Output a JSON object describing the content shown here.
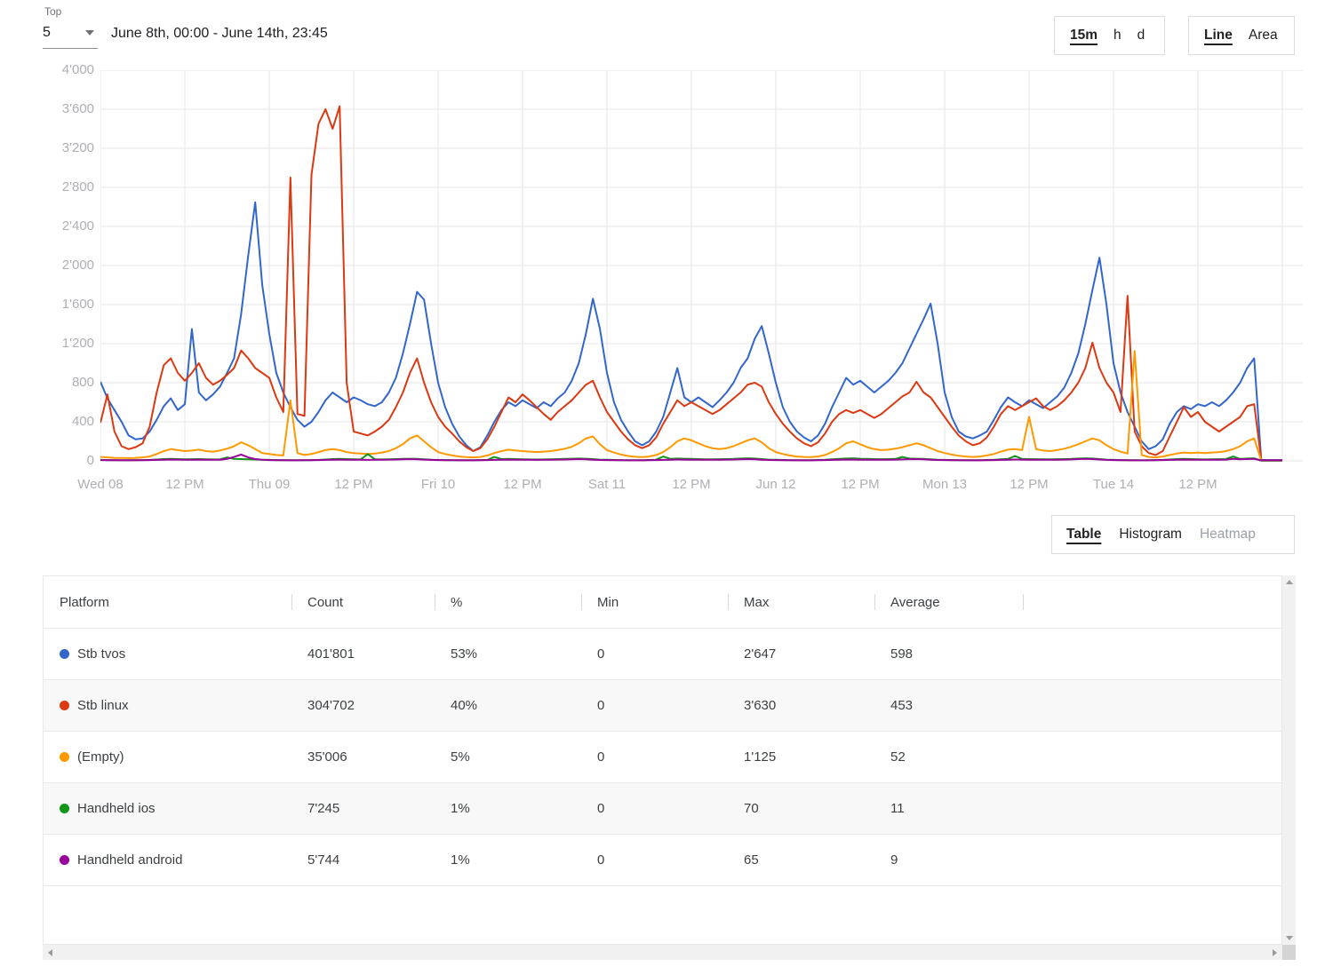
{
  "header": {
    "top_label": "Top",
    "top_value": "5",
    "date_range": "June 8th, 00:00 - June 14th, 23:45",
    "interval_options": [
      {
        "label": "15m",
        "active": true
      },
      {
        "label": "h",
        "active": false
      },
      {
        "label": "d",
        "active": false
      }
    ],
    "chart_type_options": [
      {
        "label": "Line",
        "active": true
      },
      {
        "label": "Area",
        "active": false
      }
    ]
  },
  "view_tabs": [
    {
      "label": "Table",
      "active": true
    },
    {
      "label": "Histogram",
      "active": false
    },
    {
      "label": "Heatmap",
      "active": false,
      "disabled": true
    }
  ],
  "chart_data": {
    "type": "line",
    "x_unit": "hours since June 8th 00:00, 15m granularity shown, downsampled to 1h",
    "ylim": [
      0,
      4000
    ],
    "grid": true,
    "y_tick_values": [
      0,
      400,
      800,
      1200,
      1600,
      2000,
      2400,
      2800,
      3200,
      3600,
      4000
    ],
    "y_tick_labels": [
      "0",
      "400",
      "800",
      "1'200",
      "1'600",
      "2'000",
      "2'400",
      "2'800",
      "3'200",
      "3'600",
      "4'000"
    ],
    "x_tick_hours": [
      0,
      12,
      24,
      36,
      48,
      60,
      72,
      84,
      96,
      108,
      120,
      132,
      144,
      156
    ],
    "x_tick_labels": [
      "Wed 08",
      "12 PM",
      "Thu 09",
      "12 PM",
      "Fri 10",
      "12 PM",
      "Sat 11",
      "12 PM",
      "Jun 12",
      "12 PM",
      "Mon 13",
      "12 PM",
      "Tue 14",
      "12 PM"
    ],
    "grid_hours": [
      0,
      12,
      24,
      36,
      48,
      60,
      72,
      84,
      96,
      108,
      120,
      132,
      144,
      156,
      168
    ],
    "series": [
      {
        "name": "Stb tvos",
        "color": "#3366cc",
        "values": [
          810,
          640,
          520,
          400,
          260,
          220,
          230,
          300,
          420,
          560,
          640,
          520,
          580,
          1350,
          700,
          620,
          680,
          760,
          900,
          1050,
          1500,
          2100,
          2647,
          1800,
          1300,
          900,
          700,
          550,
          420,
          350,
          400,
          500,
          620,
          700,
          650,
          600,
          650,
          620,
          580,
          560,
          600,
          700,
          850,
          1100,
          1400,
          1730,
          1650,
          1200,
          800,
          550,
          380,
          250,
          160,
          100,
          140,
          260,
          400,
          520,
          600,
          560,
          620,
          580,
          540,
          600,
          560,
          640,
          700,
          820,
          1000,
          1300,
          1660,
          1350,
          900,
          600,
          420,
          300,
          200,
          160,
          200,
          300,
          450,
          700,
          950,
          650,
          600,
          650,
          600,
          550,
          620,
          700,
          800,
          950,
          1050,
          1250,
          1380,
          1100,
          800,
          550,
          400,
          300,
          240,
          200,
          260,
          380,
          550,
          700,
          850,
          780,
          820,
          760,
          700,
          760,
          820,
          900,
          1000,
          1150,
          1300,
          1450,
          1610,
          1200,
          700,
          450,
          300,
          250,
          230,
          260,
          300,
          420,
          550,
          650,
          600,
          560,
          620,
          580,
          540,
          600,
          660,
          750,
          900,
          1100,
          1400,
          1750,
          2080,
          1600,
          1000,
          700,
          500,
          350,
          200,
          120,
          150,
          220,
          380,
          500,
          560,
          530,
          580,
          560,
          600,
          560,
          620,
          700,
          800,
          950,
          1050,
          10,
          8,
          8,
          8
        ]
      },
      {
        "name": "Stb linux",
        "color": "#dc3912",
        "values": [
          390,
          680,
          300,
          150,
          120,
          140,
          180,
          350,
          700,
          980,
          1050,
          900,
          820,
          900,
          1000,
          850,
          780,
          820,
          880,
          950,
          1130,
          1050,
          950,
          900,
          850,
          650,
          500,
          2900,
          480,
          460,
          2930,
          3450,
          3600,
          3400,
          3630,
          800,
          300,
          280,
          260,
          300,
          350,
          420,
          550,
          700,
          900,
          1050,
          800,
          600,
          450,
          350,
          280,
          200,
          140,
          100,
          130,
          220,
          350,
          500,
          650,
          600,
          680,
          620,
          550,
          480,
          420,
          500,
          560,
          620,
          700,
          780,
          820,
          650,
          500,
          400,
          300,
          220,
          160,
          130,
          160,
          240,
          380,
          500,
          620,
          560,
          600,
          560,
          520,
          480,
          520,
          580,
          640,
          700,
          780,
          800,
          760,
          600,
          480,
          380,
          300,
          230,
          180,
          150,
          190,
          280,
          400,
          480,
          520,
          490,
          520,
          480,
          440,
          480,
          540,
          600,
          660,
          700,
          810,
          700,
          650,
          550,
          450,
          350,
          260,
          200,
          160,
          180,
          240,
          350,
          480,
          560,
          520,
          560,
          600,
          640,
          560,
          520,
          560,
          620,
          700,
          800,
          950,
          1210,
          950,
          800,
          700,
          500,
          1690,
          300,
          150,
          80,
          60,
          100,
          250,
          400,
          550,
          450,
          500,
          400,
          350,
          300,
          350,
          400,
          450,
          560,
          580,
          5,
          5,
          5,
          5
        ]
      },
      {
        "name": "(Empty)",
        "color": "#ff9900",
        "values": [
          40,
          35,
          30,
          30,
          28,
          30,
          35,
          45,
          70,
          100,
          120,
          110,
          100,
          105,
          115,
          100,
          95,
          105,
          125,
          150,
          190,
          160,
          120,
          80,
          70,
          60,
          55,
          620,
          80,
          60,
          70,
          90,
          110,
          120,
          110,
          90,
          80,
          75,
          70,
          75,
          85,
          100,
          130,
          170,
          230,
          260,
          200,
          140,
          90,
          70,
          55,
          45,
          38,
          35,
          40,
          55,
          80,
          100,
          115,
          105,
          100,
          95,
          90,
          95,
          100,
          110,
          125,
          145,
          180,
          230,
          250,
          170,
          110,
          85,
          65,
          50,
          42,
          38,
          45,
          60,
          90,
          140,
          200,
          230,
          210,
          180,
          150,
          130,
          120,
          130,
          150,
          180,
          210,
          230,
          190,
          130,
          90,
          70,
          55,
          45,
          40,
          38,
          45,
          60,
          90,
          130,
          180,
          200,
          170,
          140,
          120,
          110,
          115,
          125,
          140,
          160,
          180,
          160,
          130,
          100,
          80,
          65,
          52,
          45,
          40,
          45,
          55,
          70,
          95,
          115,
          120,
          110,
          450,
          120,
          105,
          100,
          110,
          125,
          145,
          170,
          200,
          230,
          210,
          160,
          120,
          95,
          75,
          1125,
          60,
          40,
          35,
          45,
          60,
          75,
          85,
          80,
          85,
          80,
          85,
          90,
          100,
          120,
          150,
          200,
          230,
          3,
          3,
          3,
          3
        ]
      },
      {
        "name": "Handheld ios",
        "color": "#109618",
        "values": [
          10,
          8,
          7,
          6,
          6,
          7,
          8,
          10,
          14,
          18,
          20,
          18,
          16,
          17,
          18,
          16,
          15,
          16,
          35,
          20,
          18,
          16,
          14,
          12,
          10,
          8,
          7,
          7,
          6,
          7,
          8,
          10,
          14,
          18,
          20,
          18,
          16,
          15,
          70,
          16,
          15,
          16,
          18,
          20,
          22,
          20,
          16,
          12,
          10,
          8,
          7,
          6,
          6,
          7,
          8,
          10,
          40,
          18,
          20,
          18,
          16,
          15,
          14,
          15,
          16,
          18,
          20,
          22,
          24,
          22,
          18,
          12,
          12,
          9,
          7,
          6,
          6,
          7,
          9,
          12,
          45,
          20,
          24,
          22,
          20,
          18,
          16,
          16,
          17,
          18,
          20,
          24,
          26,
          24,
          18,
          13,
          11,
          9,
          7,
          6,
          6,
          7,
          9,
          12,
          16,
          20,
          24,
          26,
          22,
          20,
          18,
          17,
          18,
          20,
          40,
          24,
          22,
          20,
          16,
          12,
          10,
          8,
          7,
          6,
          6,
          7,
          9,
          12,
          16,
          20,
          50,
          20,
          18,
          17,
          16,
          16,
          17,
          18,
          20,
          24,
          26,
          24,
          18,
          13,
          10,
          8,
          7,
          6,
          5,
          6,
          8,
          10,
          14,
          18,
          20,
          18,
          16,
          15,
          16,
          17,
          18,
          45,
          20,
          24,
          26,
          2,
          2,
          2,
          2
        ]
      },
      {
        "name": "Handheld android",
        "color": "#990099",
        "values": [
          8,
          7,
          6,
          5,
          5,
          6,
          7,
          8,
          10,
          12,
          14,
          13,
          12,
          12,
          13,
          12,
          11,
          12,
          20,
          40,
          65,
          35,
          18,
          12,
          8,
          7,
          6,
          5,
          5,
          6,
          7,
          8,
          10,
          12,
          13,
          12,
          11,
          11,
          10,
          11,
          12,
          13,
          14,
          16,
          18,
          16,
          13,
          10,
          8,
          7,
          6,
          5,
          5,
          5,
          6,
          8,
          10,
          12,
          13,
          12,
          11,
          11,
          10,
          11,
          12,
          13,
          14,
          16,
          18,
          16,
          12,
          9,
          8,
          7,
          6,
          5,
          5,
          5,
          6,
          8,
          10,
          12,
          14,
          13,
          12,
          11,
          11,
          11,
          12,
          13,
          14,
          16,
          18,
          16,
          12,
          9,
          8,
          7,
          6,
          5,
          5,
          5,
          6,
          8,
          10,
          12,
          14,
          13,
          12,
          11,
          11,
          11,
          12,
          13,
          15,
          17,
          18,
          16,
          12,
          9,
          8,
          7,
          6,
          5,
          5,
          5,
          6,
          8,
          10,
          12,
          14,
          13,
          12,
          11,
          11,
          11,
          12,
          13,
          15,
          18,
          20,
          18,
          14,
          10,
          8,
          7,
          6,
          5,
          5,
          5,
          6,
          8,
          10,
          12,
          13,
          12,
          12,
          11,
          11,
          12,
          13,
          20,
          16,
          18,
          20,
          5,
          5,
          5,
          5
        ]
      }
    ]
  },
  "table": {
    "columns": [
      "Platform",
      "Count",
      "%",
      "Min",
      "Max",
      "Average"
    ],
    "rows": [
      {
        "color": "#3366cc",
        "platform": "Stb tvos",
        "count": "401'801",
        "percent": "53%",
        "min": "0",
        "max": "2'647",
        "average": "598"
      },
      {
        "color": "#dc3912",
        "platform": "Stb linux",
        "count": "304'702",
        "percent": "40%",
        "min": "0",
        "max": "3'630",
        "average": "453"
      },
      {
        "color": "#ff9900",
        "platform": "(Empty)",
        "count": "35'006",
        "percent": "5%",
        "min": "0",
        "max": "1'125",
        "average": "52"
      },
      {
        "color": "#109618",
        "platform": "Handheld ios",
        "count": "7'245",
        "percent": "1%",
        "min": "0",
        "max": "70",
        "average": "11"
      },
      {
        "color": "#990099",
        "platform": "Handheld android",
        "count": "5'744",
        "percent": "1%",
        "min": "0",
        "max": "65",
        "average": "9"
      }
    ]
  }
}
